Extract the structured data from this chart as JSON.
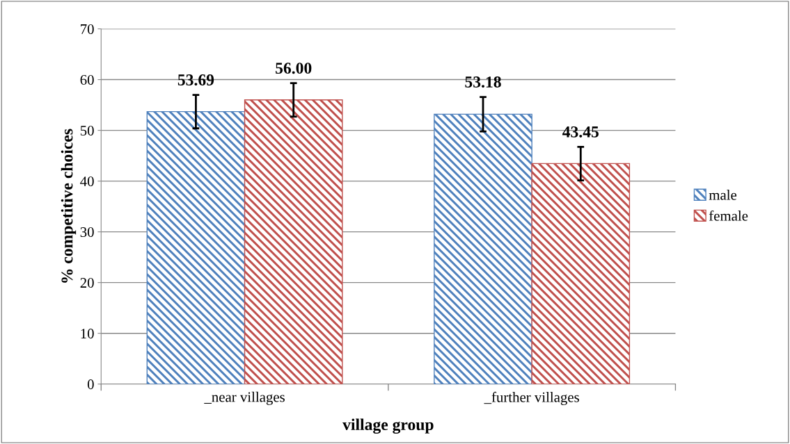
{
  "chart_data": {
    "type": "bar",
    "xlabel": "village group",
    "ylabel": "% competitive choices",
    "categories": [
      "_near villages",
      "_further villages"
    ],
    "series": [
      {
        "name": "male",
        "color": "#4f81bd",
        "values": [
          53.69,
          53.18
        ],
        "value_labels": [
          "53.69",
          "53.18"
        ],
        "errors": [
          3.3,
          3.4
        ]
      },
      {
        "name": "female",
        "color": "#c0504d",
        "values": [
          56.0,
          43.45
        ],
        "value_labels": [
          "56.00",
          "43.45"
        ],
        "errors": [
          3.3,
          3.3
        ]
      }
    ],
    "ylim": [
      0,
      70
    ],
    "yticks": [
      0,
      10,
      20,
      30,
      40,
      50,
      60,
      70
    ],
    "grid": "y",
    "legend": "right"
  }
}
